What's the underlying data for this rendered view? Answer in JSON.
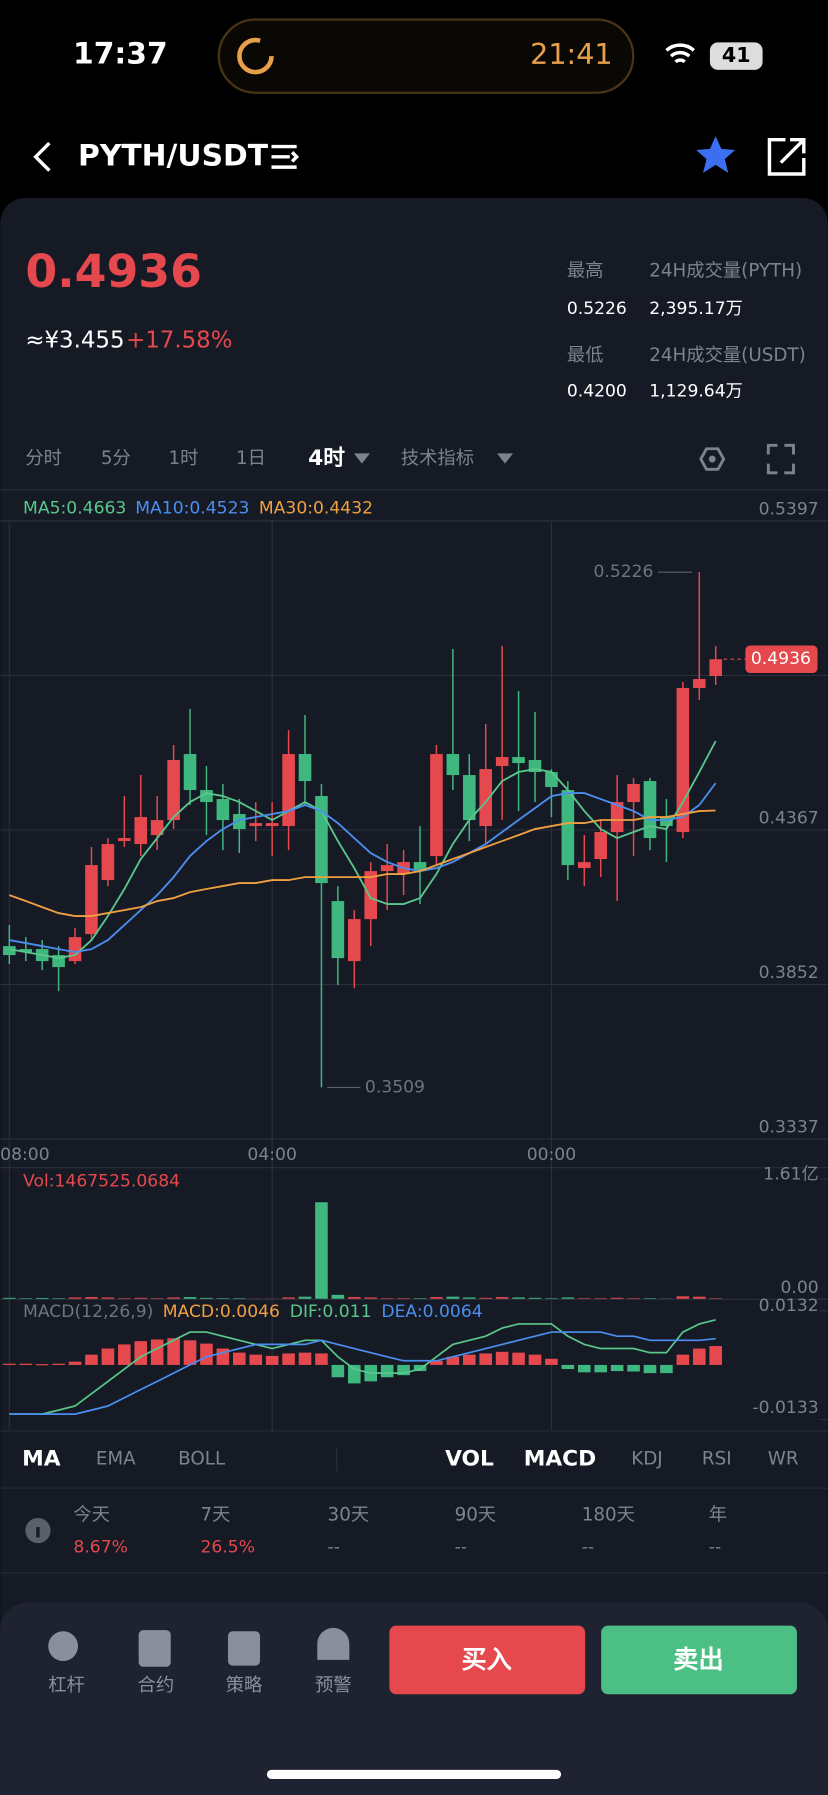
{
  "status_bar": {
    "time": "17:37",
    "timer": "21:41",
    "battery": "41"
  },
  "header": {
    "pair": "PYTH/USDT"
  },
  "ticker": {
    "price": "0.4936",
    "cny": "≈¥3.455",
    "change": "+17.58%",
    "stats": [
      {
        "label": "最高",
        "value": "0.5226"
      },
      {
        "label": "24H成交量(PYTH)",
        "value": "2,395.17万"
      },
      {
        "label": "最低",
        "value": "0.4200"
      },
      {
        "label": "24H成交量(USDT)",
        "value": "1,129.64万"
      }
    ]
  },
  "timeframes": [
    "分时",
    "5分",
    "1时",
    "1日",
    "4时",
    "技术指标"
  ],
  "indicators": [
    "MA",
    "EMA",
    "BOLL",
    "VOL",
    "MACD",
    "KDJ",
    "RSI",
    "WR"
  ],
  "returns": [
    {
      "label": "今天",
      "value": "8.67%"
    },
    {
      "label": "7天",
      "value": "26.5%"
    },
    {
      "label": "30天",
      "value": "--"
    },
    {
      "label": "90天",
      "value": "--"
    },
    {
      "label": "180天",
      "value": "--"
    },
    {
      "label": "年",
      "value": "--"
    }
  ],
  "actions": {
    "tools": [
      "杠杆",
      "合约",
      "策略",
      "预警"
    ],
    "buy": "买入",
    "sell": "卖出"
  },
  "chart_data": [
    {
      "type": "candlestick",
      "up_color": "#e5484d",
      "down_color": "#3fb87f",
      "categories": [
        "08:00",
        null,
        null,
        null,
        null,
        null,
        null,
        null,
        null,
        null,
        null,
        null,
        null,
        null,
        null,
        null,
        "04:00",
        null,
        null,
        null,
        null,
        null,
        null,
        null,
        null,
        null,
        null,
        null,
        null,
        null,
        null,
        null,
        null,
        "00:00",
        null,
        null,
        null,
        null,
        null,
        null,
        null,
        null,
        null,
        null
      ],
      "open": [
        0.398,
        0.397,
        0.397,
        0.395,
        0.393,
        0.402,
        0.42,
        0.433,
        0.432,
        0.435,
        0.44,
        0.462,
        0.45,
        0.447,
        0.442,
        0.438,
        0.438,
        0.438,
        0.462,
        0.448,
        0.413,
        0.393,
        0.407,
        0.423,
        0.422,
        0.426,
        0.428,
        0.462,
        0.455,
        0.438,
        0.458,
        0.461,
        0.46,
        0.456,
        0.45,
        0.424,
        0.427,
        0.436,
        0.446,
        0.453,
        0.441,
        0.436,
        0.484,
        0.488
      ],
      "high": [
        0.405,
        0.401,
        0.4,
        0.398,
        0.404,
        0.431,
        0.434,
        0.448,
        0.455,
        0.448,
        0.465,
        0.477,
        0.458,
        0.452,
        0.447,
        0.446,
        0.446,
        0.47,
        0.475,
        0.452,
        0.418,
        0.41,
        0.426,
        0.432,
        0.43,
        0.438,
        0.465,
        0.497,
        0.462,
        0.472,
        0.498,
        0.483,
        0.476,
        0.457,
        0.453,
        0.435,
        0.44,
        0.455,
        0.454,
        0.454,
        0.447,
        0.486,
        0.5226,
        0.498
      ],
      "low": [
        0.392,
        0.393,
        0.39,
        0.383,
        0.392,
        0.4,
        0.418,
        0.431,
        0.428,
        0.43,
        0.437,
        0.445,
        0.435,
        0.43,
        0.429,
        0.433,
        0.428,
        0.43,
        0.445,
        0.3509,
        0.385,
        0.384,
        0.398,
        0.41,
        0.415,
        0.412,
        0.425,
        0.45,
        0.433,
        0.432,
        0.44,
        0.443,
        0.446,
        0.441,
        0.42,
        0.418,
        0.421,
        0.413,
        0.428,
        0.43,
        0.426,
        0.434,
        0.48,
        0.485
      ],
      "close": [
        0.395,
        0.396,
        0.393,
        0.391,
        0.401,
        0.425,
        0.432,
        0.434,
        0.441,
        0.44,
        0.46,
        0.45,
        0.446,
        0.44,
        0.437,
        0.439,
        0.439,
        0.462,
        0.453,
        0.419,
        0.394,
        0.407,
        0.423,
        0.425,
        0.426,
        0.423,
        0.462,
        0.455,
        0.44,
        0.457,
        0.461,
        0.459,
        0.456,
        0.451,
        0.425,
        0.426,
        0.436,
        0.446,
        0.452,
        0.434,
        0.438,
        0.484,
        0.487,
        0.4936
      ],
      "series": [
        {
          "name": "MA5:0.4663",
          "color": "#59c78b",
          "values": [
            0.397,
            0.396,
            0.395,
            0.394,
            0.395,
            0.4,
            0.408,
            0.417,
            0.427,
            0.434,
            0.441,
            0.446,
            0.449,
            0.448,
            0.446,
            0.443,
            0.44,
            0.443,
            0.446,
            0.443,
            0.433,
            0.424,
            0.414,
            0.412,
            0.412,
            0.414,
            0.422,
            0.432,
            0.44,
            0.446,
            0.453,
            0.456,
            0.457,
            0.456,
            0.45,
            0.443,
            0.437,
            0.434,
            0.436,
            0.438,
            0.437,
            0.446,
            0.456,
            0.4663
          ]
        },
        {
          "name": "MA10:0.4523",
          "color": "#4a8ff0",
          "values": [
            0.4,
            0.399,
            0.398,
            0.397,
            0.396,
            0.397,
            0.4,
            0.405,
            0.41,
            0.415,
            0.421,
            0.428,
            0.433,
            0.437,
            0.44,
            0.441,
            0.442,
            0.443,
            0.445,
            0.443,
            0.439,
            0.434,
            0.429,
            0.426,
            0.424,
            0.423,
            0.424,
            0.426,
            0.429,
            0.432,
            0.436,
            0.44,
            0.444,
            0.448,
            0.449,
            0.449,
            0.447,
            0.445,
            0.443,
            0.44,
            0.44,
            0.441,
            0.445,
            0.4523
          ]
        },
        {
          "name": "MA30:0.4432",
          "color": "#f0a040",
          "values": [
            0.415,
            0.413,
            0.411,
            0.409,
            0.408,
            0.408,
            0.409,
            0.41,
            0.411,
            0.413,
            0.414,
            0.416,
            0.417,
            0.418,
            0.419,
            0.419,
            0.42,
            0.42,
            0.421,
            0.421,
            0.421,
            0.421,
            0.421,
            0.422,
            0.422,
            0.423,
            0.425,
            0.427,
            0.429,
            0.431,
            0.433,
            0.435,
            0.437,
            0.438,
            0.439,
            0.439,
            0.44,
            0.44,
            0.44,
            0.441,
            0.441,
            0.442,
            0.443,
            0.4432
          ]
        }
      ],
      "ylim": [
        0.3337,
        0.5397
      ],
      "yticks": [
        0.5397,
        0.4367,
        0.3852,
        0.3337
      ],
      "grid": true
    },
    {
      "type": "bar",
      "title": "Vol:1467525.0684",
      "values": [
        2000000,
        1500000,
        1800000,
        1500000,
        2500000,
        3000000,
        2500000,
        1500000,
        2000000,
        1500000,
        2500000,
        3000000,
        2000000,
        1500000,
        1500000,
        1000000,
        1000000,
        2500000,
        3500000,
        130000000,
        6000000,
        3000000,
        2500000,
        1500000,
        1500000,
        1500000,
        3000000,
        3500000,
        2500000,
        2000000,
        3000000,
        2500000,
        2000000,
        1500000,
        2500000,
        1500000,
        1500000,
        2000000,
        1500000,
        1500000,
        1000000,
        4000000,
        3500000,
        1467525.0684
      ],
      "ylim": [
        0,
        161000000
      ],
      "yticks": [
        {
          "value": 161000000,
          "label": "1.61亿"
        },
        {
          "value": 0,
          "label": "0.00"
        }
      ]
    },
    {
      "type": "macd",
      "title": "MACD(12,26,9)",
      "series": [
        {
          "name": "MACD:0.0046",
          "color": "#f0a040",
          "style": "bars",
          "values": [
            0.0003,
            0.0003,
            0.0002,
            0.0003,
            0.0008,
            0.0025,
            0.004,
            0.005,
            0.0058,
            0.0062,
            0.0065,
            0.006,
            0.0052,
            0.004,
            0.003,
            0.0025,
            0.0022,
            0.0028,
            0.003,
            0.0028,
            -0.003,
            -0.0045,
            -0.004,
            -0.003,
            -0.0025,
            -0.0015,
            0.001,
            0.002,
            0.0025,
            0.0028,
            0.0032,
            0.003,
            0.0025,
            0.0015,
            -0.001,
            -0.0018,
            -0.0018,
            -0.0015,
            -0.0016,
            -0.002,
            -0.002,
            0.0025,
            0.004,
            0.0046
          ]
        },
        {
          "name": "DIF:0.011",
          "color": "#59c78b",
          "style": "line",
          "values": [
            -0.012,
            -0.012,
            -0.012,
            -0.011,
            -0.01,
            -0.007,
            -0.004,
            -0.001,
            0.002,
            0.004,
            0.006,
            0.008,
            0.008,
            0.007,
            0.006,
            0.005,
            0.004,
            0.005,
            0.006,
            0.006,
            0.002,
            -0.001,
            -0.002,
            -0.002,
            -0.002,
            -0.001,
            0.002,
            0.005,
            0.006,
            0.007,
            0.009,
            0.01,
            0.01,
            0.01,
            0.007,
            0.005,
            0.004,
            0.004,
            0.004,
            0.003,
            0.003,
            0.008,
            0.01,
            0.011
          ]
        },
        {
          "name": "DEA:0.0064",
          "color": "#4a8ff0",
          "style": "line",
          "values": [
            -0.012,
            -0.012,
            -0.012,
            -0.012,
            -0.012,
            -0.011,
            -0.01,
            -0.008,
            -0.006,
            -0.004,
            -0.002,
            0,
            0.002,
            0.003,
            0.004,
            0.005,
            0.005,
            0.005,
            0.005,
            0.006,
            0.005,
            0.004,
            0.003,
            0.002,
            0.001,
            0.001,
            0.001,
            0.002,
            0.003,
            0.004,
            0.005,
            0.006,
            0.007,
            0.008,
            0.008,
            0.008,
            0.008,
            0.007,
            0.007,
            0.006,
            0.006,
            0.006,
            0.006,
            0.0064
          ]
        }
      ],
      "ylim": [
        -0.0133,
        0.0132
      ],
      "yticks": [
        0.0132,
        -0.0133
      ]
    }
  ]
}
